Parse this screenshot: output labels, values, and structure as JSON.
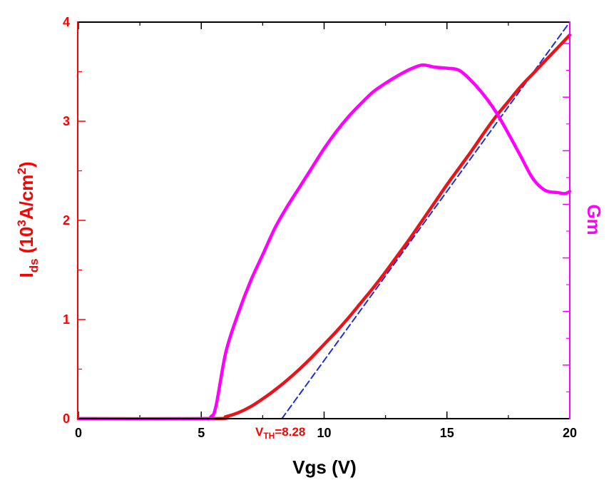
{
  "chart_data": {
    "type": "line",
    "x_axis": {
      "label": "Vgs (V)",
      "range": [
        0,
        20
      ],
      "ticks": [
        0,
        5,
        10,
        15,
        20
      ],
      "tick_labels": [
        "0",
        "5",
        "10",
        "15",
        "20"
      ]
    },
    "y_axis_left": {
      "label_main": "I",
      "label_sub": "ds",
      "label_paren_open": " (10",
      "label_sup": "3",
      "label_unit": "A/cm",
      "label_sup2": "2",
      "label_close": ")",
      "range": [
        0,
        4
      ],
      "ticks": [
        0,
        1,
        2,
        3,
        4
      ],
      "tick_labels": [
        "0",
        "1",
        "2",
        "3",
        "4"
      ],
      "color": "#ff0000"
    },
    "y_axis_right": {
      "label": "Gm",
      "color": "#ff00ff",
      "range": [
        0,
        3.7
      ],
      "tick_labels": []
    },
    "series": [
      {
        "name": "Ids",
        "color": "#e8141a",
        "axis": "left",
        "x": [
          5.5,
          6.0,
          6.5,
          7.0,
          7.5,
          8.0,
          8.5,
          9.0,
          9.5,
          10.0,
          10.5,
          11.0,
          11.5,
          12.0,
          12.5,
          13.0,
          13.5,
          14.0,
          14.5,
          15.0,
          15.5,
          16.0,
          16.5,
          17.0,
          17.5,
          18.0,
          18.5,
          19.0,
          19.5,
          20.0
        ],
        "y": [
          0.0,
          0.02,
          0.06,
          0.12,
          0.2,
          0.29,
          0.39,
          0.5,
          0.62,
          0.75,
          0.88,
          1.02,
          1.17,
          1.32,
          1.48,
          1.65,
          1.82,
          2.0,
          2.18,
          2.36,
          2.53,
          2.7,
          2.88,
          3.05,
          3.2,
          3.35,
          3.48,
          3.61,
          3.74,
          3.87
        ]
      },
      {
        "name": "Gm",
        "color": "#ff00ff",
        "axis": "right",
        "x": [
          0,
          5.0,
          5.4,
          5.6,
          6.0,
          6.5,
          7.0,
          7.5,
          8.0,
          8.5,
          9.0,
          9.5,
          10.0,
          10.5,
          11.0,
          11.5,
          12.0,
          12.5,
          13.0,
          13.5,
          14.0,
          14.5,
          15.0,
          15.5,
          16.0,
          16.5,
          17.0,
          17.5,
          18.0,
          18.5,
          19.0,
          19.5,
          19.8,
          20.0
        ],
        "y": [
          0,
          0,
          0.02,
          0.12,
          0.62,
          0.98,
          1.28,
          1.53,
          1.78,
          1.98,
          2.16,
          2.34,
          2.52,
          2.68,
          2.82,
          2.94,
          3.05,
          3.13,
          3.2,
          3.26,
          3.3,
          3.28,
          3.27,
          3.25,
          3.15,
          3.02,
          2.86,
          2.66,
          2.45,
          2.24,
          2.13,
          2.11,
          2.1,
          2.12
        ]
      },
      {
        "name": "linear fit",
        "color": "#1f2fd6",
        "style": "dashed",
        "axis": "left",
        "x": [
          8.28,
          20.0
        ],
        "y": [
          0.0,
          4.0
        ]
      }
    ],
    "annotations": [
      {
        "text_main": "V",
        "text_sub": "TH",
        "text_value": "=8.28",
        "x": 8.28,
        "y": 0,
        "color": "#ff0000"
      }
    ]
  }
}
